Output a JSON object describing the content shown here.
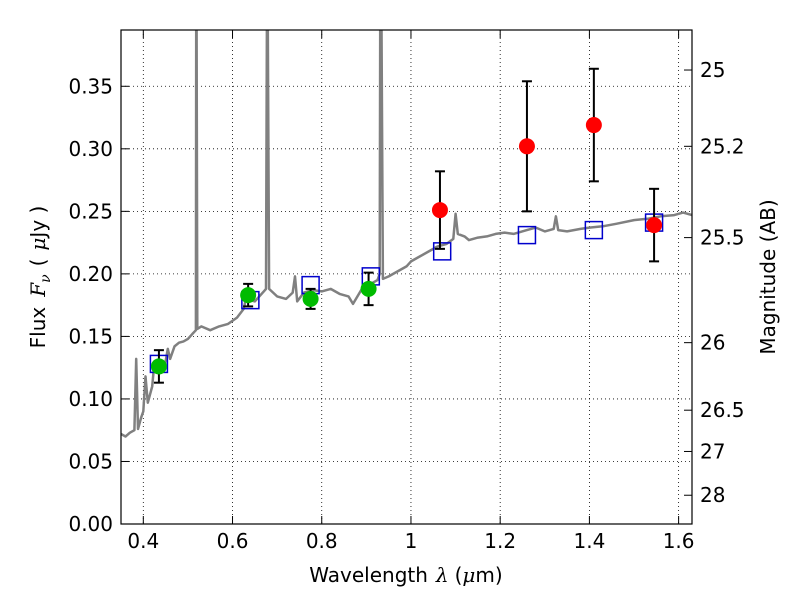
{
  "chart_data": {
    "type": "scatter",
    "title": "",
    "xlabel": {
      "prefix": "Wavelength",
      "symbol": "λ",
      "unit_open": "(",
      "unit_mu": "μ",
      "unit_rest": "m)"
    },
    "ylabel": {
      "prefix": "Flux",
      "symbol": "F",
      "subscript": "ν",
      "unit_open": "(",
      "unit_mu": "μ",
      "unit_rest": "Jy )"
    },
    "y2label": "Magnitude (AB)",
    "xlim": [
      0.35,
      1.63
    ],
    "ylim": [
      0.0,
      0.395
    ],
    "x_ticks": [
      0.4,
      0.6,
      0.8,
      1.0,
      1.2,
      1.4,
      1.6
    ],
    "x_tick_labels": [
      "0.4",
      "0.6",
      "0.8",
      "1",
      "1.2",
      "1.4",
      "1.6"
    ],
    "y_ticks": [
      0.0,
      0.05,
      0.1,
      0.15,
      0.2,
      0.25,
      0.3,
      0.35
    ],
    "y_tick_labels": [
      "0.00",
      "0.05",
      "0.10",
      "0.15",
      "0.20",
      "0.25",
      "0.30",
      "0.35"
    ],
    "y2_ticks": [
      {
        "label": "25",
        "flux": 0.363
      },
      {
        "label": "25.2",
        "flux": 0.302
      },
      {
        "label": "25.5",
        "flux": 0.229
      },
      {
        "label": "26",
        "flux": 0.145
      },
      {
        "label": "26.5",
        "flux": 0.091
      },
      {
        "label": "27",
        "flux": 0.058
      },
      {
        "label": "28",
        "flux": 0.023
      }
    ],
    "grid": true,
    "colors": {
      "spectrum": "#808080",
      "green": "#00bb00",
      "red": "#ff0000",
      "model": "#0000cc",
      "errorbar": "#000000"
    },
    "series": [
      {
        "marker": "circle-green",
        "points": [
          {
            "x": 0.435,
            "y": 0.126,
            "yerr": 0.013
          },
          {
            "x": 0.635,
            "y": 0.183,
            "yerr": 0.009
          },
          {
            "x": 0.775,
            "y": 0.18,
            "yerr": 0.008
          },
          {
            "x": 0.905,
            "y": 0.188,
            "yerr": 0.013
          }
        ]
      },
      {
        "marker": "circle-red",
        "points": [
          {
            "x": 1.065,
            "y": 0.251,
            "yerr": 0.031
          },
          {
            "x": 1.26,
            "y": 0.302,
            "yerr": 0.052
          },
          {
            "x": 1.41,
            "y": 0.319,
            "yerr": 0.045
          },
          {
            "x": 1.545,
            "y": 0.239,
            "yerr": 0.029
          }
        ]
      },
      {
        "marker": "square-open-blue",
        "points": [
          {
            "x": 0.435,
            "y": 0.128
          },
          {
            "x": 0.64,
            "y": 0.179
          },
          {
            "x": 0.775,
            "y": 0.191
          },
          {
            "x": 0.91,
            "y": 0.198
          },
          {
            "x": 1.07,
            "y": 0.218
          },
          {
            "x": 1.26,
            "y": 0.231
          },
          {
            "x": 1.41,
            "y": 0.235
          },
          {
            "x": 1.545,
            "y": 0.241
          }
        ]
      },
      {
        "marker": "line-gray",
        "points": [
          [
            0.35,
            0.072
          ],
          [
            0.36,
            0.07
          ],
          [
            0.37,
            0.073
          ],
          [
            0.38,
            0.075
          ],
          [
            0.384,
            0.132
          ],
          [
            0.388,
            0.076
          ],
          [
            0.395,
            0.085
          ],
          [
            0.4,
            0.09
          ],
          [
            0.405,
            0.118
          ],
          [
            0.41,
            0.097
          ],
          [
            0.42,
            0.11
          ],
          [
            0.425,
            0.13
          ],
          [
            0.43,
            0.128
          ],
          [
            0.44,
            0.122
          ],
          [
            0.45,
            0.13
          ],
          [
            0.455,
            0.14
          ],
          [
            0.46,
            0.132
          ],
          [
            0.47,
            0.142
          ],
          [
            0.48,
            0.145
          ],
          [
            0.49,
            0.146
          ],
          [
            0.5,
            0.148
          ],
          [
            0.51,
            0.152
          ],
          [
            0.518,
            0.155
          ],
          [
            0.5185,
            0.4
          ],
          [
            0.5195,
            0.4
          ],
          [
            0.521,
            0.156
          ],
          [
            0.53,
            0.158
          ],
          [
            0.55,
            0.155
          ],
          [
            0.57,
            0.158
          ],
          [
            0.59,
            0.16
          ],
          [
            0.61,
            0.165
          ],
          [
            0.625,
            0.172
          ],
          [
            0.63,
            0.18
          ],
          [
            0.65,
            0.178
          ],
          [
            0.66,
            0.182
          ],
          [
            0.67,
            0.186
          ],
          [
            0.675,
            0.188
          ],
          [
            0.677,
            0.4
          ],
          [
            0.679,
            0.4
          ],
          [
            0.682,
            0.188
          ],
          [
            0.7,
            0.182
          ],
          [
            0.72,
            0.18
          ],
          [
            0.735,
            0.185
          ],
          [
            0.74,
            0.198
          ],
          [
            0.745,
            0.178
          ],
          [
            0.76,
            0.185
          ],
          [
            0.78,
            0.187
          ],
          [
            0.8,
            0.186
          ],
          [
            0.82,
            0.188
          ],
          [
            0.84,
            0.184
          ],
          [
            0.86,
            0.182
          ],
          [
            0.87,
            0.176
          ],
          [
            0.89,
            0.188
          ],
          [
            0.91,
            0.192
          ],
          [
            0.925,
            0.195
          ],
          [
            0.93,
            0.2
          ],
          [
            0.931,
            0.4
          ],
          [
            0.934,
            0.4
          ],
          [
            0.937,
            0.196
          ],
          [
            0.95,
            0.198
          ],
          [
            0.97,
            0.202
          ],
          [
            0.99,
            0.206
          ],
          [
            1.0,
            0.21
          ],
          [
            1.02,
            0.214
          ],
          [
            1.04,
            0.218
          ],
          [
            1.06,
            0.222
          ],
          [
            1.08,
            0.224
          ],
          [
            1.095,
            0.228
          ],
          [
            1.1,
            0.248
          ],
          [
            1.105,
            0.232
          ],
          [
            1.12,
            0.23
          ],
          [
            1.13,
            0.227
          ],
          [
            1.15,
            0.229
          ],
          [
            1.17,
            0.23
          ],
          [
            1.19,
            0.232
          ],
          [
            1.21,
            0.233
          ],
          [
            1.23,
            0.232
          ],
          [
            1.26,
            0.235
          ],
          [
            1.28,
            0.237
          ],
          [
            1.3,
            0.234
          ],
          [
            1.32,
            0.236
          ],
          [
            1.325,
            0.246
          ],
          [
            1.33,
            0.235
          ],
          [
            1.35,
            0.234
          ],
          [
            1.38,
            0.236
          ],
          [
            1.4,
            0.237
          ],
          [
            1.43,
            0.238
          ],
          [
            1.46,
            0.24
          ],
          [
            1.5,
            0.243
          ],
          [
            1.53,
            0.244
          ],
          [
            1.56,
            0.246
          ],
          [
            1.59,
            0.247
          ],
          [
            1.61,
            0.249
          ],
          [
            1.63,
            0.247
          ]
        ]
      }
    ]
  }
}
